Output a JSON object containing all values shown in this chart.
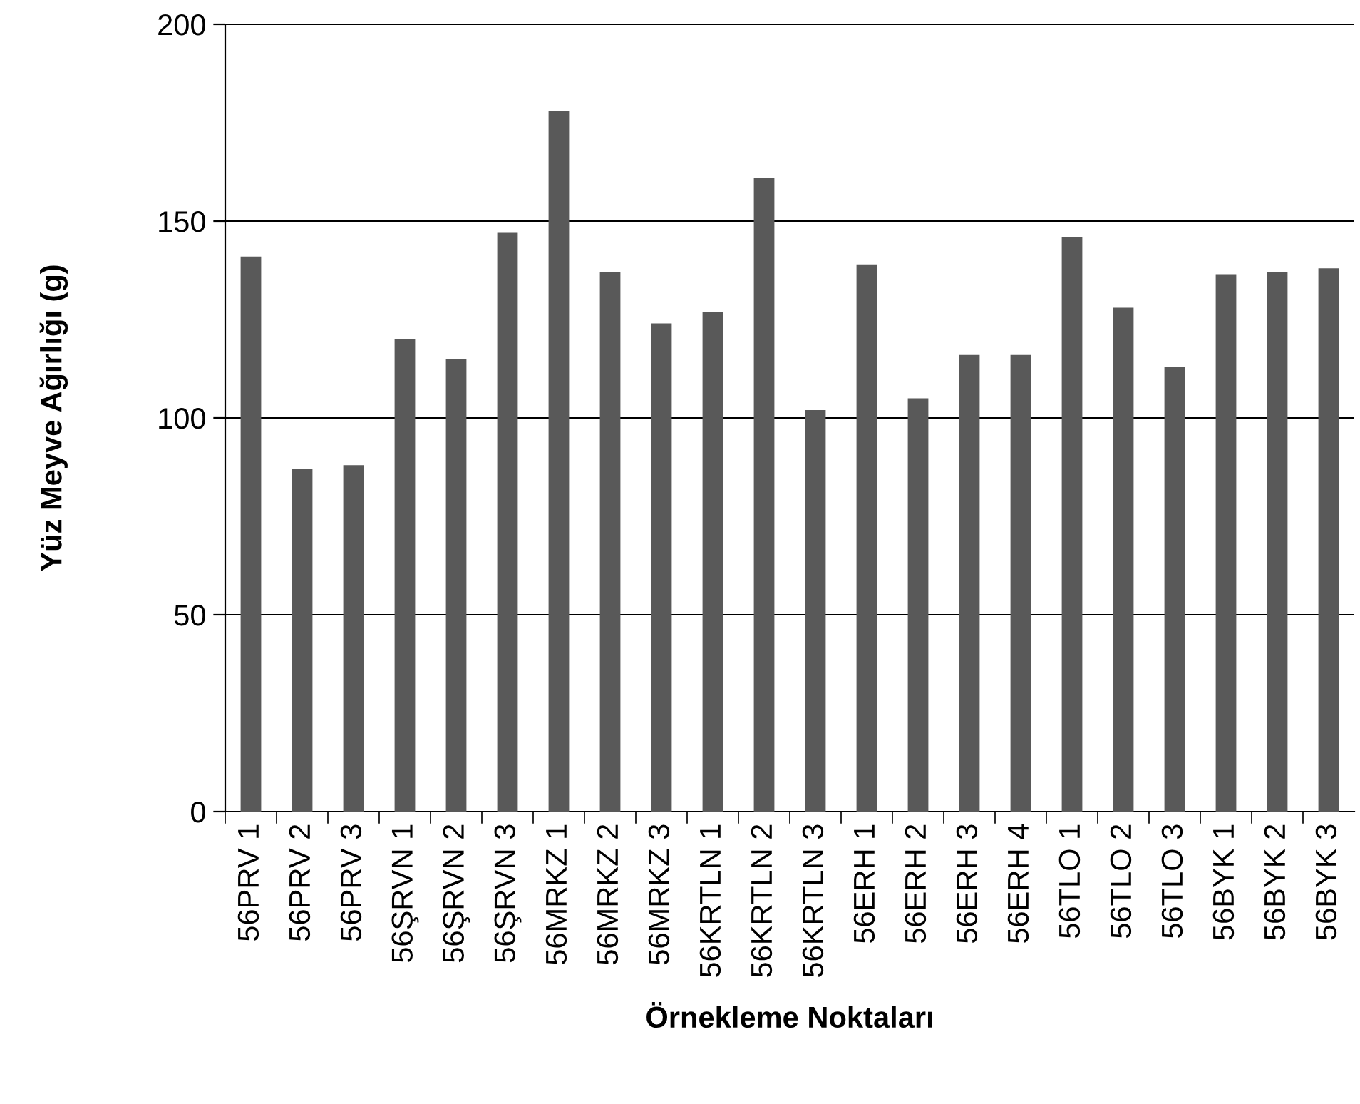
{
  "chart_data": {
    "type": "bar",
    "xlabel": "Örnekleme Noktaları",
    "ylabel": "Yüz Meyve Ağırlığı (g)",
    "categories": [
      "56PRV 1",
      "56PRV 2",
      "56PRV 3",
      "56ŞRVN 1",
      "56ŞRVN 2",
      "56ŞRVN 3",
      "56MRKZ 1",
      "56MRKZ 2",
      "56MRKZ 3",
      "56KRTLN 1",
      "56KRTLN 2",
      "56KRTLN 3",
      "56ERH 1",
      "56ERH 2",
      "56ERH 3",
      "56ERH 4",
      "56TLO 1",
      "56TLO 2",
      "56TLO 3",
      "56BYK 1",
      "56BYK 2",
      "56BYK 3"
    ],
    "values": [
      141,
      87,
      88,
      120,
      115,
      147,
      178,
      137,
      124,
      127,
      161,
      102,
      139,
      105,
      116,
      116,
      146,
      128,
      113,
      136.5,
      137,
      138
    ],
    "color": "#595959",
    "ylim": [
      0,
      200
    ],
    "yticks": [
      0,
      50,
      100,
      150,
      200
    ],
    "grid": "y"
  }
}
